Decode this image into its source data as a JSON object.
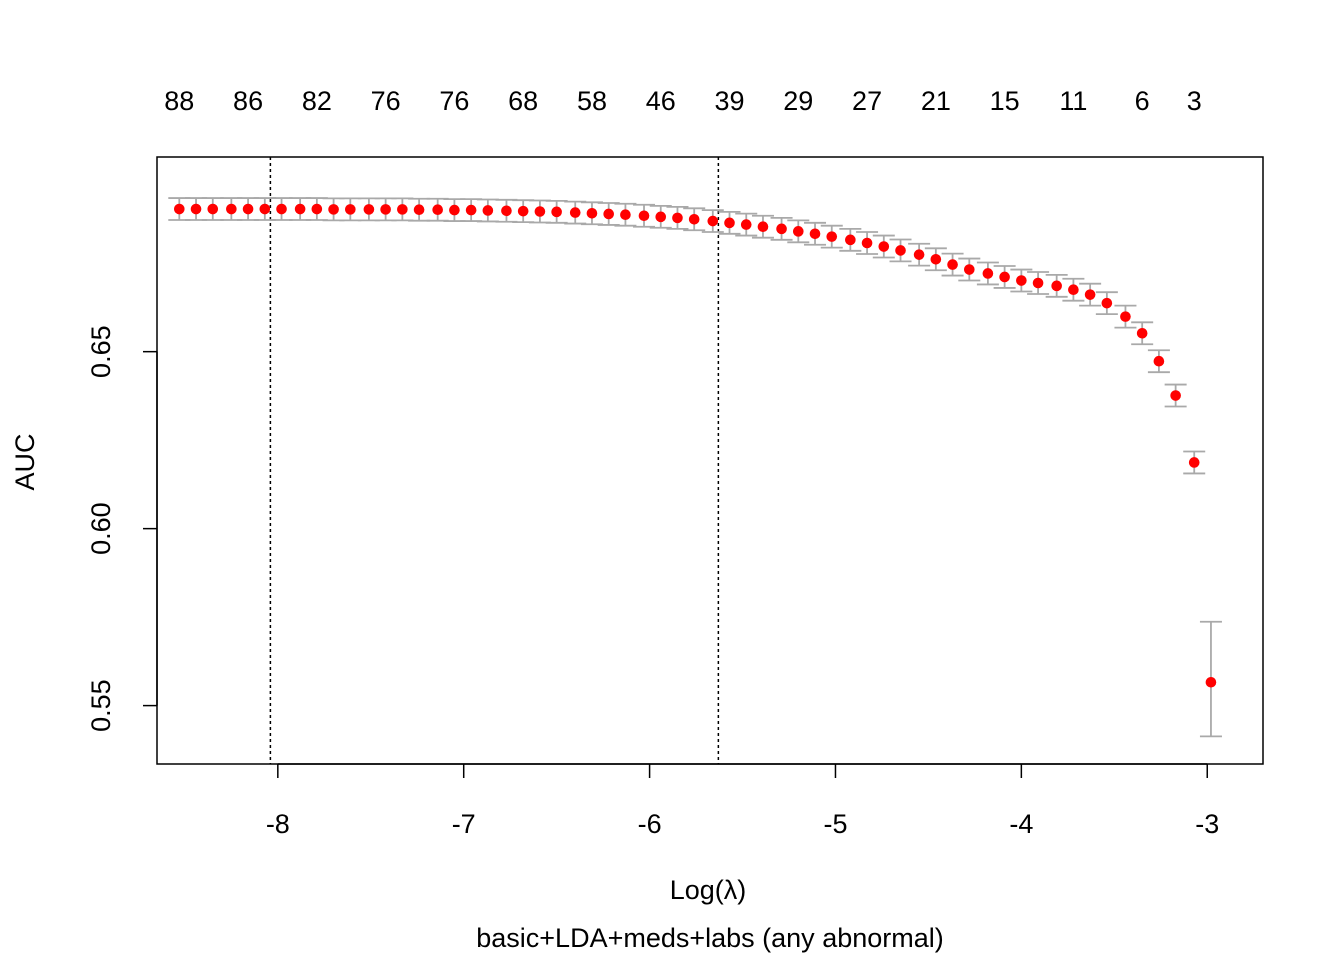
{
  "chart_data": {
    "type": "scatter",
    "subtitle": "basic+LDA+meds+labs (any abnormal)",
    "xlabel": "Log(λ)",
    "ylabel": "AUC",
    "xlim": [
      -8.65,
      -2.7
    ],
    "ylim": [
      0.5335,
      0.705
    ],
    "x_ticks": [
      -8,
      -7,
      -6,
      -5,
      -4,
      -3
    ],
    "x_tick_labels": [
      "-8",
      "-7",
      "-6",
      "-5",
      "-4",
      "-3"
    ],
    "y_ticks": [
      0.55,
      0.6,
      0.65
    ],
    "y_tick_labels": [
      "0.55",
      "0.60",
      "0.65"
    ],
    "top_axis_labels": [
      {
        "x": -8.53,
        "label": "88"
      },
      {
        "x": -8.16,
        "label": "86"
      },
      {
        "x": -7.79,
        "label": "82"
      },
      {
        "x": -7.42,
        "label": "76"
      },
      {
        "x": -7.05,
        "label": "76"
      },
      {
        "x": -6.68,
        "label": "68"
      },
      {
        "x": -6.31,
        "label": "58"
      },
      {
        "x": -5.94,
        "label": "46"
      },
      {
        "x": -5.57,
        "label": "39"
      },
      {
        "x": -5.2,
        "label": "29"
      },
      {
        "x": -4.83,
        "label": "27"
      },
      {
        "x": -4.46,
        "label": "21"
      },
      {
        "x": -4.09,
        "label": "15"
      },
      {
        "x": -3.72,
        "label": "11"
      },
      {
        "x": -3.35,
        "label": "6"
      },
      {
        "x": -3.07,
        "label": "3"
      }
    ],
    "vlines": [
      -8.04,
      -5.63
    ],
    "series": [
      {
        "x": [
          -8.53,
          -8.44,
          -8.35,
          -8.25,
          -8.16,
          -8.07,
          -7.98,
          -7.88,
          -7.79,
          -7.7,
          -7.61,
          -7.51,
          -7.42,
          -7.33,
          -7.24,
          -7.14,
          -7.05,
          -6.96,
          -6.87,
          -6.77,
          -6.68,
          -6.59,
          -6.5,
          -6.4,
          -6.31,
          -6.22,
          -6.13,
          -6.03,
          -5.94,
          -5.85,
          -5.76,
          -5.66,
          -5.57,
          -5.48,
          -5.39,
          -5.29,
          -5.2,
          -5.11,
          -5.02,
          -4.92,
          -4.83,
          -4.74,
          -4.65,
          -4.55,
          -4.46,
          -4.37,
          -4.28,
          -4.18,
          -4.09,
          -4.0,
          -3.91,
          -3.81,
          -3.72,
          -3.63,
          -3.54,
          -3.44,
          -3.35,
          -3.26,
          -3.17,
          -3.07,
          -2.98
        ],
        "y": [
          0.6903,
          0.6903,
          0.6903,
          0.6903,
          0.6903,
          0.6903,
          0.6903,
          0.6903,
          0.6903,
          0.6902,
          0.6902,
          0.6902,
          0.6902,
          0.6902,
          0.6901,
          0.6901,
          0.69,
          0.69,
          0.6899,
          0.6898,
          0.6897,
          0.6896,
          0.6895,
          0.6893,
          0.6891,
          0.6889,
          0.6887,
          0.6884,
          0.6881,
          0.6878,
          0.6874,
          0.6869,
          0.6864,
          0.6859,
          0.6853,
          0.6847,
          0.684,
          0.6833,
          0.6825,
          0.6816,
          0.6807,
          0.6797,
          0.6786,
          0.6774,
          0.6761,
          0.6746,
          0.6732,
          0.6721,
          0.6711,
          0.6701,
          0.6694,
          0.6686,
          0.6675,
          0.6661,
          0.6637,
          0.6599,
          0.6552,
          0.6473,
          0.6376,
          0.6187,
          0.5566
        ],
        "lower": [
          0.6872,
          0.6872,
          0.6872,
          0.6872,
          0.6872,
          0.6872,
          0.6872,
          0.6872,
          0.6872,
          0.6871,
          0.6871,
          0.6871,
          0.6871,
          0.6871,
          0.687,
          0.687,
          0.6869,
          0.6869,
          0.6868,
          0.6867,
          0.6866,
          0.6865,
          0.6864,
          0.6862,
          0.686,
          0.6858,
          0.6856,
          0.6853,
          0.685,
          0.6847,
          0.6843,
          0.6838,
          0.6833,
          0.6828,
          0.6822,
          0.6816,
          0.6809,
          0.6802,
          0.6794,
          0.6785,
          0.6776,
          0.6766,
          0.6755,
          0.6743,
          0.673,
          0.6715,
          0.6701,
          0.669,
          0.668,
          0.667,
          0.6663,
          0.6655,
          0.6644,
          0.663,
          0.6606,
          0.6568,
          0.6521,
          0.6442,
          0.6345,
          0.6156,
          0.5413
        ],
        "upper": [
          0.6934,
          0.6934,
          0.6934,
          0.6934,
          0.6934,
          0.6934,
          0.6934,
          0.6934,
          0.6934,
          0.6933,
          0.6933,
          0.6933,
          0.6933,
          0.6933,
          0.6932,
          0.6932,
          0.6931,
          0.6931,
          0.693,
          0.6929,
          0.6928,
          0.6927,
          0.6926,
          0.6924,
          0.6922,
          0.692,
          0.6918,
          0.6915,
          0.6912,
          0.6909,
          0.6905,
          0.69,
          0.6895,
          0.689,
          0.6884,
          0.6878,
          0.6871,
          0.6864,
          0.6856,
          0.6847,
          0.6838,
          0.6828,
          0.6817,
          0.6805,
          0.6792,
          0.6777,
          0.6763,
          0.6752,
          0.6742,
          0.6732,
          0.6725,
          0.6717,
          0.6706,
          0.6692,
          0.6668,
          0.663,
          0.6583,
          0.6504,
          0.6407,
          0.6218,
          0.5737
        ]
      }
    ],
    "point_color": "#ff0000",
    "errorbar_color": "#a9a9a9",
    "grid": false,
    "legend": "none"
  }
}
